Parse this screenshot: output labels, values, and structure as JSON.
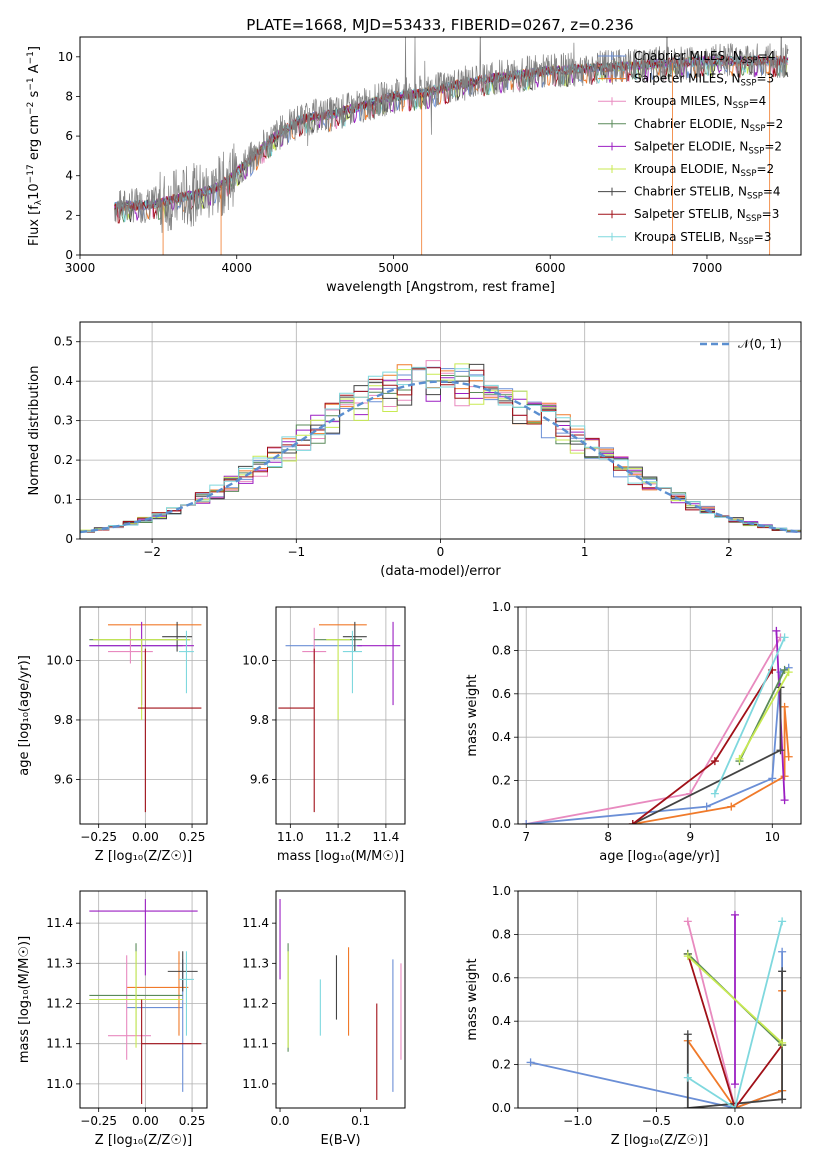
{
  "figure_title": "PLATE=1668, MJD=53433, FIBERID=0267, z=0.236",
  "colors": {
    "chabrier_miles": "#6b8fd6",
    "salpeter_miles": "#f07a2a",
    "kroupa_miles": "#e88abf",
    "chabrier_elodie": "#5a8a5a",
    "salpeter_elodie": "#9b1fc2",
    "kroupa_elodie": "#c8ea52",
    "chabrier_stelib": "#444444",
    "salpeter_stelib": "#a01018",
    "kroupa_stelib": "#7fd8de",
    "data": "#808080",
    "gauss": "#5b8fd0",
    "grid": "#b0b0b0"
  },
  "chart_data": [
    {
      "id": "spectrum",
      "type": "line",
      "xlabel": "wavelength [Angstrom, rest frame]",
      "ylabel": "Flux [f_λ10^-17 erg cm^-2 s^-1 A^-1]",
      "xlim": [
        3000,
        7600
      ],
      "ylim": [
        0,
        11
      ],
      "xticks": [
        3000,
        4000,
        5000,
        6000,
        7000
      ],
      "yticks": [
        0,
        2,
        4,
        6,
        8,
        10
      ],
      "grid": false,
      "legend_position": "upper-right",
      "legend": [
        {
          "label": "Chabrier MILES, N",
          "sub": "SSP",
          "suffix": "=4",
          "key": "chabrier_miles"
        },
        {
          "label": "Salpeter MILES, N",
          "sub": "SSP",
          "suffix": "=3",
          "key": "salpeter_miles"
        },
        {
          "label": "Kroupa MILES, N",
          "sub": "SSP",
          "suffix": "=4",
          "key": "kroupa_miles"
        },
        {
          "label": "Chabrier ELODIE, N",
          "sub": "SSP",
          "suffix": "=2",
          "key": "chabrier_elodie"
        },
        {
          "label": "Salpeter ELODIE, N",
          "sub": "SSP",
          "suffix": "=2",
          "key": "salpeter_elodie"
        },
        {
          "label": "Kroupa ELODIE, N",
          "sub": "SSP",
          "suffix": "=2",
          "key": "kroupa_elodie"
        },
        {
          "label": "Chabrier STELIB, N",
          "sub": "SSP",
          "suffix": "=4",
          "key": "chabrier_stelib"
        },
        {
          "label": "Salpeter STELIB, N",
          "sub": "SSP",
          "suffix": "=3",
          "key": "salpeter_stelib"
        },
        {
          "label": "Kroupa STELIB, N",
          "sub": "SSP",
          "suffix": "=3",
          "key": "kroupa_stelib"
        }
      ],
      "continuum": {
        "x": [
          3220,
          3300,
          3400,
          3500,
          3600,
          3700,
          3800,
          3900,
          4000,
          4100,
          4200,
          4300,
          4400,
          4500,
          4600,
          4700,
          4800,
          4900,
          5000,
          5100,
          5200,
          5300,
          5400,
          5500,
          5600,
          5700,
          5800,
          5900,
          6000,
          6200,
          6400,
          6600,
          6800,
          7000,
          7200,
          7400
        ],
        "y": [
          2.4,
          2.5,
          2.5,
          2.6,
          2.8,
          3.0,
          3.2,
          3.5,
          4.2,
          4.9,
          5.7,
          6.3,
          6.8,
          7.0,
          7.1,
          7.3,
          7.5,
          7.8,
          8.0,
          8.1,
          8.2,
          8.4,
          8.6,
          8.7,
          8.9,
          9.0,
          9.1,
          9.2,
          9.3,
          9.4,
          9.5,
          9.6,
          9.7,
          9.8,
          9.8,
          9.8
        ]
      }
    },
    {
      "id": "residuals",
      "type": "area",
      "xlabel": "(data-model)/error",
      "ylabel": "Normed distribution",
      "xlim": [
        -2.5,
        2.5
      ],
      "ylim": [
        0,
        0.55
      ],
      "xticks": [
        -2,
        -1,
        0,
        1,
        2
      ],
      "xticklabels": [
        "−2",
        "−1",
        "0",
        "1",
        "2"
      ],
      "yticks": [
        0.0,
        0.1,
        0.2,
        0.3,
        0.4,
        0.5
      ],
      "grid": true,
      "legend_position": "upper-right",
      "legend_label": "𝒩(0, 1)",
      "bin_width": 0.1
    },
    {
      "id": "age_vs_Z",
      "type": "scatter",
      "xlabel": "Z [log₁₀(Z/Z☉)]",
      "ylabel": "age  [log₁₀(age/yr)]",
      "xlim": [
        -0.35,
        0.33
      ],
      "ylim": [
        9.45,
        10.18
      ],
      "xticks": [
        -0.25,
        0.0,
        0.25
      ],
      "xticklabels": [
        "−0.25",
        "0.00",
        "0.25"
      ],
      "yticks": [
        9.6,
        9.8,
        10.0
      ],
      "yticklabels": [
        "9.6",
        "9.8",
        "10.0"
      ],
      "grid": true,
      "errorbars": [
        {
          "key": "salpeter_miles",
          "x": 0.05,
          "xerr": [
            0.25,
            0.25
          ],
          "y": 10.12,
          "yerr": [
            0.0,
            0.0
          ]
        },
        {
          "key": "chabrier_miles",
          "x": -0.05,
          "xerr": [
            0.25,
            0.25
          ],
          "y": 10.05,
          "yerr": [
            0.0,
            0.0
          ]
        },
        {
          "key": "salpeter_elodie",
          "x": -0.02,
          "xerr": [
            0.28,
            0.28
          ],
          "y": 10.05,
          "yerr": [
            0.2,
            0.08
          ]
        },
        {
          "key": "kroupa_miles",
          "x": -0.08,
          "xerr": [
            0.12,
            0.12
          ],
          "y": 10.03,
          "yerr": [
            0.04,
            0.08
          ]
        },
        {
          "key": "chabrier_elodie",
          "x": -0.03,
          "xerr": [
            0.27,
            0.27
          ],
          "y": 10.07,
          "yerr": [
            0.0,
            0.0
          ]
        },
        {
          "key": "chabrier_stelib",
          "x": 0.17,
          "xerr": [
            0.08,
            0.08
          ],
          "y": 10.08,
          "yerr": [
            0.05,
            0.05
          ]
        },
        {
          "key": "kroupa_elodie",
          "x": -0.02,
          "xerr": [
            0.26,
            0.26
          ],
          "y": 10.07,
          "yerr": [
            0.27,
            0.0
          ]
        },
        {
          "key": "salpeter_stelib",
          "x": 0.0,
          "xerr": [
            0.04,
            0.3
          ],
          "y": 9.84,
          "yerr": [
            0.35,
            0.2
          ]
        },
        {
          "key": "kroupa_stelib",
          "x": 0.22,
          "xerr": [
            0.04,
            0.04
          ],
          "y": 10.03,
          "yerr": [
            0.14,
            0.07
          ]
        }
      ]
    },
    {
      "id": "age_vs_mass",
      "type": "scatter",
      "xlabel": "mass [log₁₀(M/M☉)]",
      "xlim": [
        10.94,
        11.48
      ],
      "ylim": [
        9.45,
        10.18
      ],
      "xticks": [
        11.0,
        11.2,
        11.4
      ],
      "xticklabels": [
        "11.0",
        "11.2",
        "11.4"
      ],
      "yticks": [
        9.6,
        9.8,
        10.0
      ],
      "yticklabels": [
        "9.6",
        "9.8",
        "10.0"
      ],
      "grid": true,
      "errorbars": [
        {
          "key": "salpeter_miles",
          "x": 11.22,
          "xerr": [
            0.1,
            0.1
          ],
          "y": 10.12,
          "yerr": [
            0.0,
            0.0
          ]
        },
        {
          "key": "chabrier_miles",
          "x": 11.2,
          "xerr": [
            0.22,
            0.1
          ],
          "y": 10.05,
          "yerr": [
            0.0,
            0.0
          ]
        },
        {
          "key": "salpeter_elodie",
          "x": 11.43,
          "xerr": [
            0.15,
            0.03
          ],
          "y": 10.05,
          "yerr": [
            0.2,
            0.08
          ]
        },
        {
          "key": "kroupa_miles",
          "x": 11.1,
          "xerr": [
            0.05,
            0.05
          ],
          "y": 10.03,
          "yerr": [
            0.04,
            0.08
          ]
        },
        {
          "key": "chabrier_elodie",
          "x": 11.2,
          "xerr": [
            0.1,
            0.1
          ],
          "y": 10.07,
          "yerr": [
            0.0,
            0.0
          ]
        },
        {
          "key": "chabrier_stelib",
          "x": 11.27,
          "xerr": [
            0.05,
            0.05
          ],
          "y": 10.08,
          "yerr": [
            0.05,
            0.05
          ]
        },
        {
          "key": "kroupa_elodie",
          "x": 11.2,
          "xerr": [
            0.05,
            0.05
          ],
          "y": 10.07,
          "yerr": [
            0.27,
            0.0
          ]
        },
        {
          "key": "salpeter_stelib",
          "x": 11.1,
          "xerr": [
            0.15,
            0.0
          ],
          "y": 9.84,
          "yerr": [
            0.35,
            0.2
          ]
        },
        {
          "key": "kroupa_stelib",
          "x": 11.26,
          "xerr": [
            0.04,
            0.04
          ],
          "y": 10.03,
          "yerr": [
            0.14,
            0.07
          ]
        }
      ]
    },
    {
      "id": "weight_vs_age",
      "type": "line",
      "xlabel": "age  [log₁₀(age/yr)]",
      "ylabel": "mass weight",
      "xlim": [
        6.9,
        10.35
      ],
      "ylim": [
        0,
        1.0
      ],
      "xticks": [
        7,
        8,
        9,
        10
      ],
      "yticks": [
        0.0,
        0.2,
        0.4,
        0.6,
        0.8,
        1.0
      ],
      "yticklabels": [
        "0.0",
        "0.2",
        "0.4",
        "0.6",
        "0.8",
        "1.0"
      ],
      "grid": true,
      "series": [
        {
          "key": "kroupa_miles",
          "x": [
            7.0,
            9.0,
            10.1
          ],
          "y": [
            0.0,
            0.14,
            0.86
          ]
        },
        {
          "key": "chabrier_miles",
          "x": [
            7.0,
            9.2,
            10.0,
            10.1,
            10.2
          ],
          "y": [
            0.0,
            0.08,
            0.21,
            0.7,
            0.72
          ]
        },
        {
          "key": "salpeter_miles",
          "x": [
            8.3,
            9.5,
            10.15,
            10.15,
            10.2
          ],
          "y": [
            0.0,
            0.08,
            0.22,
            0.54,
            0.31
          ]
        },
        {
          "key": "salpeter_elodie",
          "x": [
            10.05,
            10.15
          ],
          "y": [
            0.89,
            0.11
          ]
        },
        {
          "key": "chabrier_stelib",
          "x": [
            8.3,
            10.1,
            10.1
          ],
          "y": [
            0.0,
            0.34,
            0.63
          ]
        },
        {
          "key": "salpeter_stelib",
          "x": [
            8.3,
            9.3,
            10.0
          ],
          "y": [
            0.0,
            0.29,
            0.71
          ]
        },
        {
          "key": "chabrier_elodie",
          "x": [
            9.6,
            10.15
          ],
          "y": [
            0.29,
            0.71
          ]
        },
        {
          "key": "kroupa_elodie",
          "x": [
            9.6,
            10.2
          ],
          "y": [
            0.3,
            0.7
          ]
        },
        {
          "key": "kroupa_stelib",
          "x": [
            9.3,
            10.15
          ],
          "y": [
            0.14,
            0.86
          ]
        }
      ]
    },
    {
      "id": "mass_vs_Z",
      "type": "scatter",
      "xlabel": "Z [log₁₀(Z/Z☉)]",
      "ylabel": "mass [log₁₀(M/M☉)]",
      "xlim": [
        -0.35,
        0.33
      ],
      "ylim": [
        10.94,
        11.48
      ],
      "xticks": [
        -0.25,
        0.0,
        0.25
      ],
      "xticklabels": [
        "−0.25",
        "0.00",
        "0.25"
      ],
      "yticks": [
        11.0,
        11.1,
        11.2,
        11.3,
        11.4
      ],
      "yticklabels": [
        "11.0",
        "11.1",
        "11.2",
        "11.3",
        "11.4"
      ],
      "grid": true,
      "errorbars": [
        {
          "key": "salpeter_elodie",
          "x": 0.0,
          "xerr": [
            0.3,
            0.28
          ],
          "y": 11.43,
          "yerr": [
            0.16,
            0.03
          ]
        },
        {
          "key": "chabrier_miles",
          "x": 0.2,
          "xerr": [
            0.3,
            0.0
          ],
          "y": 11.19,
          "yerr": [
            0.21,
            0.12
          ]
        },
        {
          "key": "salpeter_miles",
          "x": 0.18,
          "xerr": [
            0.28,
            0.05
          ],
          "y": 11.24,
          "yerr": [
            0.12,
            0.09
          ]
        },
        {
          "key": "kroupa_miles",
          "x": -0.1,
          "xerr": [
            0.1,
            0.13
          ],
          "y": 11.12,
          "yerr": [
            0.06,
            0.2
          ]
        },
        {
          "key": "chabrier_elodie",
          "x": -0.05,
          "xerr": [
            0.25,
            0.25
          ],
          "y": 11.22,
          "yerr": [
            0.1,
            0.13
          ]
        },
        {
          "key": "chabrier_stelib",
          "x": 0.2,
          "xerr": [
            0.08,
            0.08
          ],
          "y": 11.28,
          "yerr": [
            0.05,
            0.05
          ]
        },
        {
          "key": "kroupa_elodie",
          "x": -0.05,
          "xerr": [
            0.25,
            0.25
          ],
          "y": 11.21,
          "yerr": [
            0.12,
            0.12
          ]
        },
        {
          "key": "salpeter_stelib",
          "x": -0.02,
          "xerr": [
            0.0,
            0.32
          ],
          "y": 11.1,
          "yerr": [
            0.15,
            0.11
          ]
        },
        {
          "key": "kroupa_stelib",
          "x": 0.22,
          "xerr": [
            0.04,
            0.04
          ],
          "y": 11.26,
          "yerr": [
            0.14,
            0.07
          ]
        }
      ]
    },
    {
      "id": "mass_vs_ebv",
      "type": "scatter",
      "xlabel": "E(B-V)",
      "xlim": [
        -0.005,
        0.155
      ],
      "ylim": [
        10.94,
        11.48
      ],
      "xticks": [
        0.0,
        0.1
      ],
      "xticklabels": [
        "0.0",
        "0.1"
      ],
      "yticks": [
        11.0,
        11.1,
        11.2,
        11.3,
        11.4
      ],
      "yticklabels": [
        "11.0",
        "11.1",
        "11.2",
        "11.3",
        "11.4"
      ],
      "grid": false,
      "errorbars": [
        {
          "key": "salpeter_elodie",
          "x": 0.0,
          "xerr": [
            0.0,
            0.0
          ],
          "y": 11.36,
          "yerr": [
            0.1,
            0.1
          ]
        },
        {
          "key": "chabrier_elodie",
          "x": 0.01,
          "xerr": [
            0.0,
            0.0
          ],
          "y": 11.22,
          "yerr": [
            0.14,
            0.13
          ]
        },
        {
          "key": "kroupa_elodie",
          "x": 0.01,
          "xerr": [
            0.0,
            0.0
          ],
          "y": 11.21,
          "yerr": [
            0.12,
            0.12
          ]
        },
        {
          "key": "kroupa_stelib",
          "x": 0.05,
          "xerr": [
            0.0,
            0.0
          ],
          "y": 11.19,
          "yerr": [
            0.07,
            0.07
          ]
        },
        {
          "key": "chabrier_stelib",
          "x": 0.07,
          "xerr": [
            0.0,
            0.0
          ],
          "y": 11.22,
          "yerr": [
            0.06,
            0.1
          ]
        },
        {
          "key": "salpeter_miles",
          "x": 0.085,
          "xerr": [
            0.0,
            0.0
          ],
          "y": 11.23,
          "yerr": [
            0.11,
            0.11
          ]
        },
        {
          "key": "salpeter_stelib",
          "x": 0.12,
          "xerr": [
            0.0,
            0.0
          ],
          "y": 11.08,
          "yerr": [
            0.12,
            0.12
          ]
        },
        {
          "key": "chabrier_miles",
          "x": 0.14,
          "xerr": [
            0.0,
            0.0
          ],
          "y": 11.14,
          "yerr": [
            0.16,
            0.17
          ]
        },
        {
          "key": "kroupa_miles",
          "x": 0.15,
          "xerr": [
            0.0,
            0.0
          ],
          "y": 11.18,
          "yerr": [
            0.12,
            0.12
          ]
        }
      ]
    },
    {
      "id": "weight_vs_Z",
      "type": "line",
      "xlabel": "Z [log₁₀(Z/Z☉)]",
      "ylabel": "mass weight",
      "xlim": [
        -1.38,
        0.42
      ],
      "ylim": [
        0,
        1.0
      ],
      "xticks": [
        -1.0,
        -0.5,
        0.0
      ],
      "xticklabels": [
        "−1.0",
        "−0.5",
        "0.0"
      ],
      "yticks": [
        0.0,
        0.2,
        0.4,
        0.6,
        0.8,
        1.0
      ],
      "yticklabels": [
        "0.0",
        "0.2",
        "0.4",
        "0.6",
        "0.8",
        "1.0"
      ],
      "grid": true,
      "series": [
        {
          "key": "chabrier_miles",
          "x": [
            -1.3,
            0.0,
            0.3,
            0.3
          ],
          "y": [
            0.21,
            0.0,
            0.08,
            0.72
          ]
        },
        {
          "key": "salpeter_miles",
          "x": [
            -0.3,
            0.0,
            0.3,
            0.3
          ],
          "y": [
            0.31,
            0.0,
            0.08,
            0.54
          ]
        },
        {
          "key": "kroupa_miles",
          "x": [
            -0.3,
            0.0
          ],
          "y": [
            0.86,
            0.0
          ]
        },
        {
          "key": "salpeter_elodie",
          "x": [
            0.0,
            0.0
          ],
          "y": [
            0.89,
            0.11
          ]
        },
        {
          "key": "chabrier_stelib",
          "x": [
            -0.3,
            -0.3,
            0.3,
            0.3
          ],
          "y": [
            0.34,
            0.0,
            0.04,
            0.63
          ]
        },
        {
          "key": "salpeter_stelib",
          "x": [
            -0.3,
            0.0,
            0.3
          ],
          "y": [
            0.71,
            0.0,
            0.29
          ]
        },
        {
          "key": "chabrier_elodie",
          "x": [
            -0.3,
            0.3
          ],
          "y": [
            0.71,
            0.29
          ]
        },
        {
          "key": "kroupa_elodie",
          "x": [
            -0.3,
            0.3
          ],
          "y": [
            0.7,
            0.3
          ]
        },
        {
          "key": "kroupa_stelib",
          "x": [
            -0.3,
            0.0,
            0.3
          ],
          "y": [
            0.14,
            0.0,
            0.86
          ]
        }
      ]
    }
  ]
}
